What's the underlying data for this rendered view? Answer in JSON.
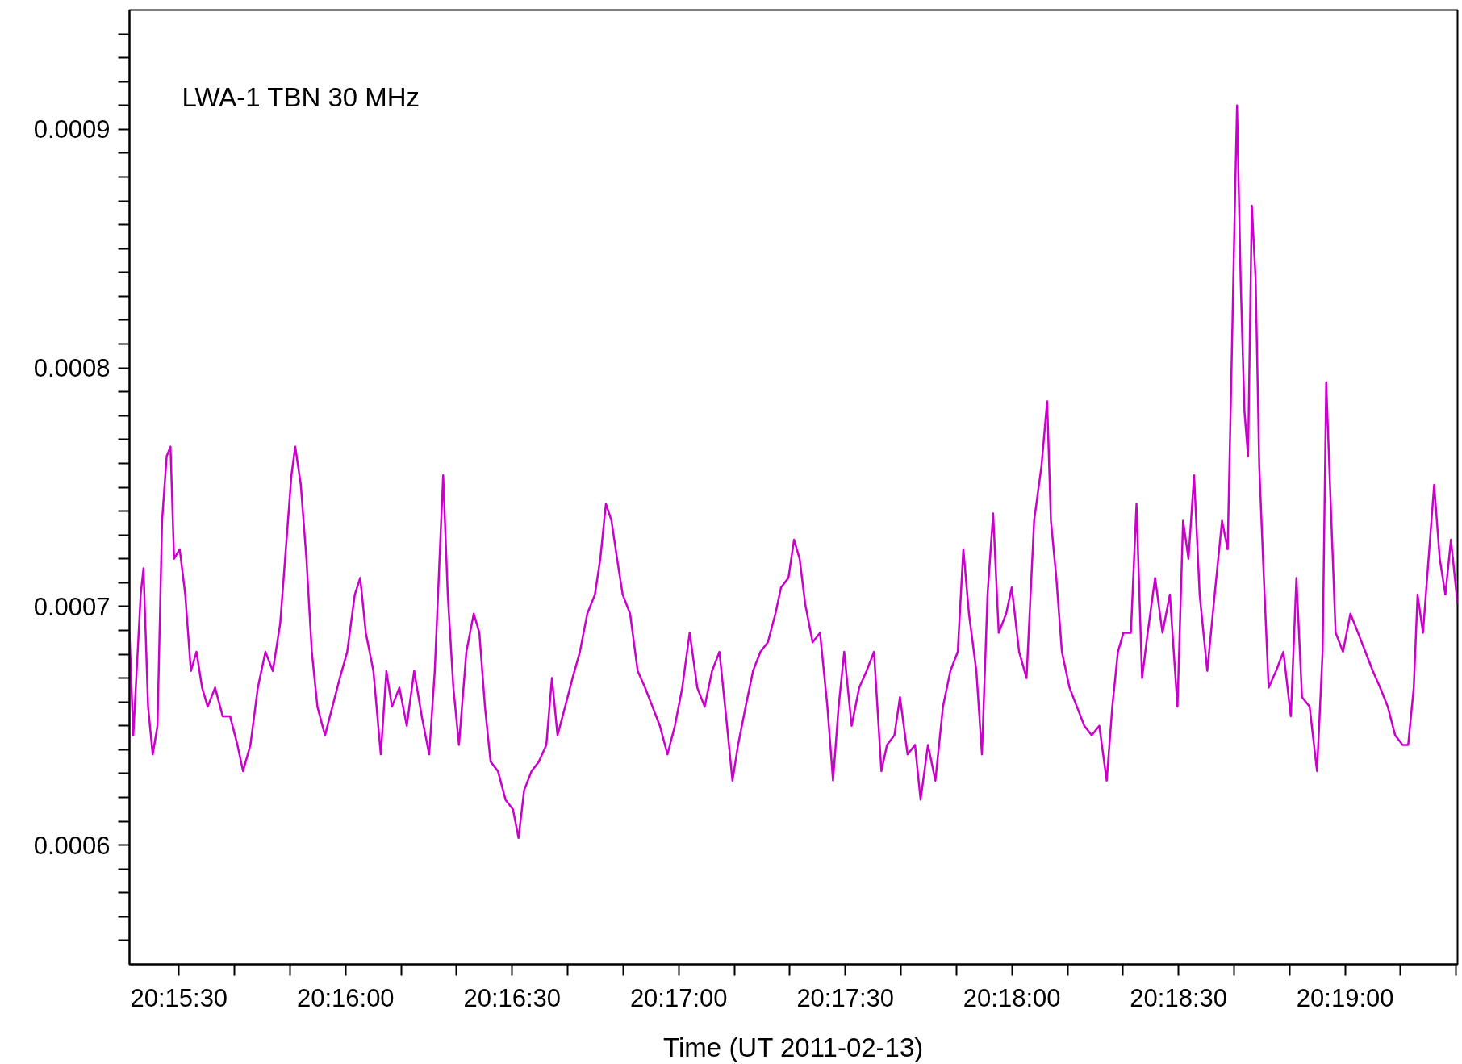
{
  "chart_data": {
    "type": "line",
    "xlabel": "Time (UT 2011-02-13)",
    "annotations": [
      "LWA-1 TBN 30 MHz"
    ],
    "grid": false,
    "xlim": [
      20.25586,
      20.32229
    ],
    "ylim": [
      0.00055,
      0.00095
    ],
    "xticks": [
      {
        "value": 20.258333,
        "label": "20:15:30"
      },
      {
        "value": 20.261111,
        "label": null
      },
      {
        "value": 20.263889,
        "label": null
      },
      {
        "value": 20.266667,
        "label": "20:16:00"
      },
      {
        "value": 20.269444,
        "label": null
      },
      {
        "value": 20.272222,
        "label": null
      },
      {
        "value": 20.275,
        "label": "20:16:30"
      },
      {
        "value": 20.277778,
        "label": null
      },
      {
        "value": 20.280556,
        "label": null
      },
      {
        "value": 20.283333,
        "label": "20:17:00"
      },
      {
        "value": 20.286111,
        "label": null
      },
      {
        "value": 20.288889,
        "label": null
      },
      {
        "value": 20.291667,
        "label": "20:17:30"
      },
      {
        "value": 20.294444,
        "label": null
      },
      {
        "value": 20.297222,
        "label": null
      },
      {
        "value": 20.3,
        "label": "20:18:00"
      },
      {
        "value": 20.302778,
        "label": null
      },
      {
        "value": 20.305556,
        "label": null
      },
      {
        "value": 20.308333,
        "label": "20:18:30"
      },
      {
        "value": 20.311111,
        "label": null
      },
      {
        "value": 20.313889,
        "label": null
      },
      {
        "value": 20.316667,
        "label": "20:19:00"
      },
      {
        "value": 20.319444,
        "label": null
      },
      {
        "value": 20.322222,
        "label": null
      }
    ],
    "yticks": [
      {
        "value": 0.00056,
        "label": null
      },
      {
        "value": 0.00057,
        "label": null
      },
      {
        "value": 0.00058,
        "label": null
      },
      {
        "value": 0.00059,
        "label": null
      },
      0.0006,
      {
        "value": 0.00061,
        "label": null
      },
      {
        "value": 0.00062,
        "label": null
      },
      {
        "value": 0.00063,
        "label": null
      },
      {
        "value": 0.00064,
        "label": null
      },
      {
        "value": 0.00065,
        "label": null
      },
      {
        "value": 0.00066,
        "label": null
      },
      {
        "value": 0.00067,
        "label": null
      },
      {
        "value": 0.00068,
        "label": null
      },
      {
        "value": 0.00069,
        "label": null
      },
      0.0007,
      {
        "value": 0.00071,
        "label": null
      },
      {
        "value": 0.00072,
        "label": null
      },
      {
        "value": 0.00073,
        "label": null
      },
      {
        "value": 0.00074,
        "label": null
      },
      {
        "value": 0.00075,
        "label": null
      },
      {
        "value": 0.00076,
        "label": null
      },
      {
        "value": 0.00077,
        "label": null
      },
      {
        "value": 0.00078,
        "label": null
      },
      {
        "value": 0.00079,
        "label": null
      },
      0.0008,
      {
        "value": 0.00081,
        "label": null
      },
      {
        "value": 0.00082,
        "label": null
      },
      {
        "value": 0.00083,
        "label": null
      },
      {
        "value": 0.00084,
        "label": null
      },
      {
        "value": 0.00085,
        "label": null
      },
      {
        "value": 0.00086,
        "label": null
      },
      {
        "value": 0.00087,
        "label": null
      },
      {
        "value": 0.00088,
        "label": null
      },
      {
        "value": 0.00089,
        "label": null
      },
      0.0009,
      {
        "value": 0.00091,
        "label": null
      },
      {
        "value": 0.00092,
        "label": null
      },
      {
        "value": 0.00093,
        "label": null
      },
      {
        "value": 0.00094,
        "label": null
      }
    ],
    "x": [
      20.25586,
      20.25605,
      20.25642,
      20.25656,
      20.25679,
      20.25702,
      20.25726,
      20.25749,
      20.25772,
      20.25791,
      20.25809,
      20.25837,
      20.25865,
      20.25893,
      20.25921,
      20.25949,
      20.25977,
      20.26014,
      20.26052,
      20.26089,
      20.26126,
      20.26154,
      20.26191,
      20.26228,
      20.26266,
      20.26303,
      20.2634,
      20.26368,
      20.26396,
      20.26415,
      20.26443,
      20.26471,
      20.26498,
      20.26526,
      20.26564,
      20.26601,
      20.26638,
      20.26675,
      20.26713,
      20.2674,
      20.26768,
      20.26806,
      20.26843,
      20.26871,
      20.26899,
      20.26936,
      20.26973,
      20.2701,
      20.27048,
      20.27085,
      20.27113,
      20.27141,
      20.27155,
      20.27178,
      20.27206,
      20.27234,
      20.27271,
      20.27308,
      20.27336,
      20.27364,
      20.27392,
      20.27429,
      20.27467,
      20.27504,
      20.27532,
      20.2756,
      20.27597,
      20.27634,
      20.27671,
      20.27699,
      20.27727,
      20.27765,
      20.27802,
      20.27839,
      20.27876,
      20.27914,
      20.27941,
      20.27969,
      20.27997,
      20.28025,
      20.28053,
      20.2809,
      20.28128,
      20.28165,
      20.28202,
      20.28239,
      20.28277,
      20.28314,
      20.28351,
      20.28388,
      20.28426,
      20.28463,
      20.285,
      20.28537,
      20.28575,
      20.28602,
      20.2863,
      20.28668,
      20.28705,
      20.28742,
      20.28779,
      20.28817,
      20.28845,
      20.28882,
      20.2891,
      20.28938,
      20.28966,
      20.29003,
      20.2904,
      20.29077,
      20.29105,
      20.29133,
      20.29161,
      20.29198,
      20.29236,
      20.29273,
      20.2931,
      20.29347,
      20.29375,
      20.29412,
      20.2944,
      20.29478,
      20.29515,
      20.29543,
      20.2958,
      20.29617,
      20.29655,
      20.29692,
      20.29729,
      20.29757,
      20.29785,
      20.29822,
      20.2985,
      20.29878,
      20.29906,
      20.29934,
      20.29971,
      20.29999,
      20.30036,
      20.30073,
      20.30111,
      20.30148,
      20.30176,
      20.30195,
      20.30222,
      20.3025,
      20.30288,
      20.30325,
      20.30362,
      20.30399,
      20.30437,
      20.30474,
      20.30502,
      20.3053,
      20.30558,
      20.30595,
      20.30623,
      20.30651,
      20.30679,
      20.30716,
      20.30753,
      20.3079,
      20.30828,
      20.30856,
      20.30883,
      20.30911,
      20.30939,
      20.30977,
      20.31014,
      20.31051,
      20.31079,
      20.31098,
      20.31116,
      20.31126,
      20.31144,
      20.31163,
      20.31181,
      20.312,
      20.31219,
      20.31237,
      20.31256,
      20.31284,
      20.31321,
      20.31358,
      20.31395,
      20.31423,
      20.31451,
      20.31489,
      20.31526,
      20.31554,
      20.31572,
      20.31591,
      20.31619,
      20.31656,
      20.31693,
      20.31731,
      20.31768,
      20.31805,
      20.31842,
      20.3188,
      20.31917,
      20.31954,
      20.31982,
      20.3201,
      20.32029,
      20.32056,
      20.32084,
      20.32112,
      20.3214,
      20.32168,
      20.32196,
      20.32229
    ],
    "series": [
      {
        "color": "#cc00cc",
        "values": [
          0.000689,
          0.000646,
          0.000705,
          0.000716,
          0.000658,
          0.000638,
          0.00065,
          0.000736,
          0.000763,
          0.000767,
          0.00072,
          0.000724,
          0.000705,
          0.000673,
          0.000681,
          0.000666,
          0.000658,
          0.000666,
          0.000654,
          0.000654,
          0.000642,
          0.000631,
          0.000642,
          0.000666,
          0.000681,
          0.000673,
          0.000693,
          0.000724,
          0.000755,
          0.000767,
          0.000751,
          0.00072,
          0.000681,
          0.000658,
          0.000646,
          0.000658,
          0.00067,
          0.000681,
          0.000705,
          0.000712,
          0.000689,
          0.000673,
          0.000638,
          0.000673,
          0.000658,
          0.000666,
          0.00065,
          0.000673,
          0.000654,
          0.000638,
          0.000673,
          0.000728,
          0.000755,
          0.000705,
          0.000666,
          0.000642,
          0.000681,
          0.000697,
          0.000689,
          0.000658,
          0.000635,
          0.000631,
          0.000619,
          0.000615,
          0.000603,
          0.000623,
          0.000631,
          0.000635,
          0.000642,
          0.00067,
          0.000646,
          0.000658,
          0.00067,
          0.000681,
          0.000697,
          0.000705,
          0.00072,
          0.000743,
          0.000736,
          0.00072,
          0.000705,
          0.000697,
          0.000673,
          0.000666,
          0.000658,
          0.00065,
          0.000638,
          0.00065,
          0.000666,
          0.000689,
          0.000666,
          0.000658,
          0.000673,
          0.000681,
          0.00065,
          0.000627,
          0.000642,
          0.000658,
          0.000673,
          0.000681,
          0.000685,
          0.000697,
          0.000708,
          0.000712,
          0.000728,
          0.00072,
          0.000701,
          0.000685,
          0.000689,
          0.000658,
          0.000627,
          0.000658,
          0.000681,
          0.00065,
          0.000666,
          0.000673,
          0.000681,
          0.000631,
          0.000642,
          0.000646,
          0.000662,
          0.000638,
          0.000642,
          0.000619,
          0.000642,
          0.000627,
          0.000658,
          0.000673,
          0.000681,
          0.000724,
          0.000697,
          0.000673,
          0.000638,
          0.000705,
          0.000739,
          0.000689,
          0.000697,
          0.000708,
          0.000681,
          0.00067,
          0.000736,
          0.000759,
          0.000786,
          0.000736,
          0.000712,
          0.000681,
          0.000666,
          0.000658,
          0.00065,
          0.000646,
          0.00065,
          0.000627,
          0.000658,
          0.000681,
          0.000689,
          0.000689,
          0.000743,
          0.00067,
          0.000689,
          0.000712,
          0.000689,
          0.000705,
          0.000658,
          0.000736,
          0.00072,
          0.000755,
          0.000705,
          0.000673,
          0.000705,
          0.000736,
          0.000724,
          0.000798,
          0.000872,
          0.00091,
          0.000837,
          0.000782,
          0.000763,
          0.000868,
          0.000837,
          0.000759,
          0.00072,
          0.000666,
          0.000673,
          0.000681,
          0.000654,
          0.000712,
          0.000662,
          0.000658,
          0.000631,
          0.000681,
          0.000794,
          0.000751,
          0.000689,
          0.000681,
          0.000697,
          0.000689,
          0.000681,
          0.000673,
          0.000666,
          0.000658,
          0.000646,
          0.000642,
          0.000642,
          0.000666,
          0.000705,
          0.000689,
          0.00072,
          0.000751,
          0.00072,
          0.000705,
          0.000728,
          0.000701
        ]
      }
    ]
  }
}
